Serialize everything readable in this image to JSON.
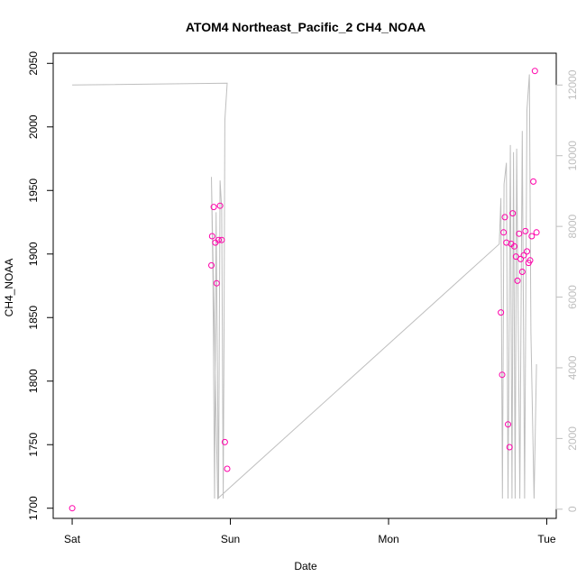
{
  "chart_data": {
    "type": "scatter",
    "title": "ATOM4 Northeast_Pacific_2 CH4_NOAA",
    "xlabel": "Date",
    "ylabel": "CH4_NOAA",
    "x_ticks": [
      "Sat",
      "Sun",
      "Mon",
      "Tue"
    ],
    "x_tick_positions": [
      0,
      1,
      2,
      3
    ],
    "xlim": [
      -0.12,
      3.06
    ],
    "y_ticks": [
      1700,
      1750,
      1800,
      1850,
      1900,
      1950,
      2000,
      2050
    ],
    "ylim": [
      1692,
      2058
    ],
    "y2_ticks": [
      0,
      2000,
      4000,
      6000,
      8000,
      10000,
      12000
    ],
    "y2lim": [
      -260,
      12900
    ],
    "grid": false,
    "colors": {
      "points": "#ff00aa",
      "line": "#bebebe",
      "right_axis": "#bebebe",
      "axis": "#000000"
    },
    "series": [
      {
        "values": [
          {
            "x": 0.0,
            "y": 1700
          },
          {
            "x": 0.88,
            "y": 1891
          },
          {
            "x": 0.885,
            "y": 1914
          },
          {
            "x": 0.895,
            "y": 1937
          },
          {
            "x": 0.905,
            "y": 1909
          },
          {
            "x": 0.913,
            "y": 1877
          },
          {
            "x": 0.925,
            "y": 1911
          },
          {
            "x": 0.935,
            "y": 1938
          },
          {
            "x": 0.945,
            "y": 1911
          },
          {
            "x": 0.965,
            "y": 1752
          },
          {
            "x": 0.98,
            "y": 1731
          },
          {
            "x": 2.71,
            "y": 1854
          },
          {
            "x": 2.718,
            "y": 1805
          },
          {
            "x": 2.727,
            "y": 1917
          },
          {
            "x": 2.735,
            "y": 1929
          },
          {
            "x": 2.745,
            "y": 1909
          },
          {
            "x": 2.755,
            "y": 1766
          },
          {
            "x": 2.765,
            "y": 1748
          },
          {
            "x": 2.775,
            "y": 1908
          },
          {
            "x": 2.785,
            "y": 1932
          },
          {
            "x": 2.795,
            "y": 1906
          },
          {
            "x": 2.805,
            "y": 1898
          },
          {
            "x": 2.815,
            "y": 1879
          },
          {
            "x": 2.825,
            "y": 1916
          },
          {
            "x": 2.835,
            "y": 1896
          },
          {
            "x": 2.845,
            "y": 1886
          },
          {
            "x": 2.855,
            "y": 1899
          },
          {
            "x": 2.865,
            "y": 1918
          },
          {
            "x": 2.875,
            "y": 1902
          },
          {
            "x": 2.885,
            "y": 1893
          },
          {
            "x": 2.895,
            "y": 1895
          },
          {
            "x": 2.905,
            "y": 1914
          },
          {
            "x": 2.915,
            "y": 1957
          },
          {
            "x": 2.925,
            "y": 2044
          },
          {
            "x": 2.935,
            "y": 1917
          }
        ]
      },
      {
        "axis": "right",
        "values": [
          {
            "x": 0.0,
            "y": 12000
          },
          {
            "x": 0.98,
            "y": 12050
          },
          {
            "x": 0.965,
            "y": 11000
          },
          {
            "x": 0.96,
            "y": 5000
          },
          {
            "x": 0.955,
            "y": 300
          },
          {
            "x": 0.945,
            "y": 8500
          },
          {
            "x": 0.935,
            "y": 9300
          },
          {
            "x": 0.925,
            "y": 300
          },
          {
            "x": 0.91,
            "y": 8400
          },
          {
            "x": 0.9,
            "y": 300
          },
          {
            "x": 0.89,
            "y": 6500
          },
          {
            "x": 0.88,
            "y": 9400
          },
          {
            "x": 0.92,
            "y": 300
          },
          {
            "x": 2.7,
            "y": 7500
          },
          {
            "x": 2.71,
            "y": 8800
          },
          {
            "x": 2.72,
            "y": 300
          },
          {
            "x": 2.73,
            "y": 9200
          },
          {
            "x": 2.745,
            "y": 9800
          },
          {
            "x": 2.755,
            "y": 300
          },
          {
            "x": 2.77,
            "y": 10300
          },
          {
            "x": 2.78,
            "y": 300
          },
          {
            "x": 2.79,
            "y": 10100
          },
          {
            "x": 2.8,
            "y": 300
          },
          {
            "x": 2.81,
            "y": 10200
          },
          {
            "x": 2.83,
            "y": 300
          },
          {
            "x": 2.845,
            "y": 10700
          },
          {
            "x": 2.86,
            "y": 300
          },
          {
            "x": 2.875,
            "y": 11300
          },
          {
            "x": 2.89,
            "y": 12300
          },
          {
            "x": 2.9,
            "y": 5000
          },
          {
            "x": 2.92,
            "y": 300
          },
          {
            "x": 2.935,
            "y": 4100
          }
        ]
      }
    ]
  }
}
